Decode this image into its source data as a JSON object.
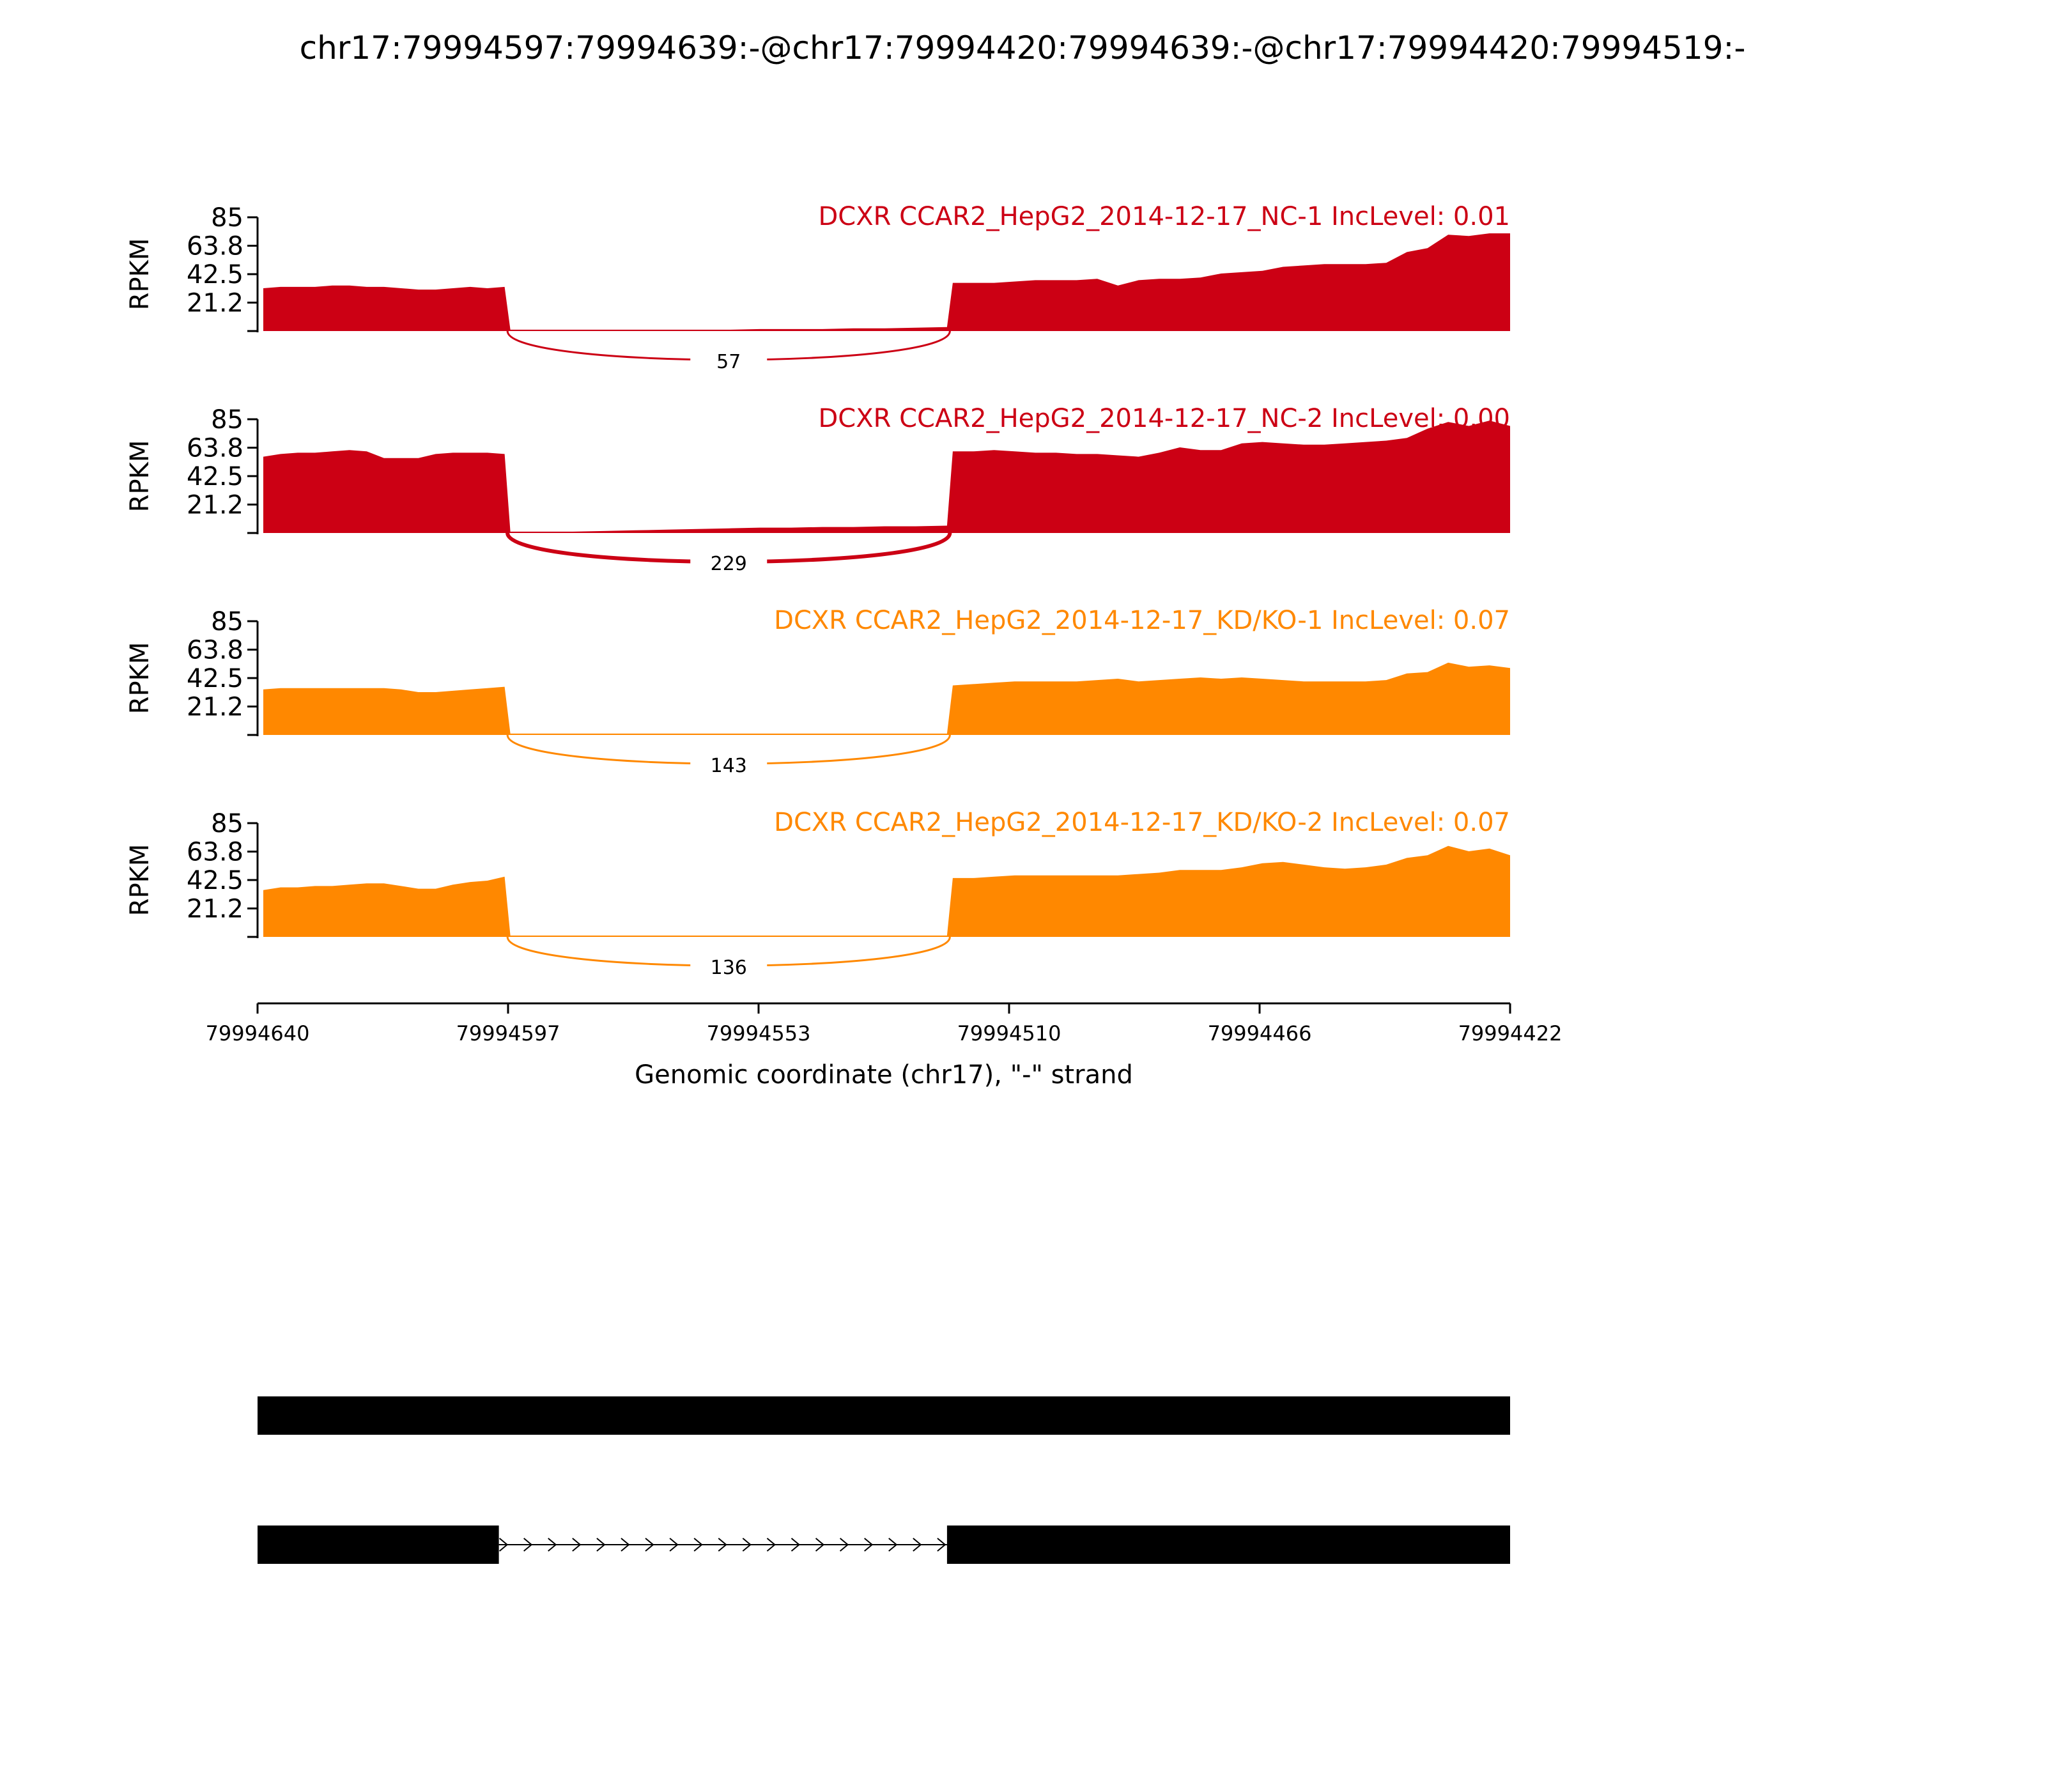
{
  "figure": {
    "title": "chr17:79994597:79994639:-@chr17:79994420:79994639:-@chr17:79994420:79994519:-",
    "ylabel": "RPKM",
    "xlabel": "Genomic coordinate (chr17), \"-\" strand",
    "x_ticks": [
      {
        "label": "79994640"
      },
      {
        "label": "79994597"
      },
      {
        "label": "79994553"
      },
      {
        "label": "79994510"
      },
      {
        "label": "79994466"
      },
      {
        "label": "79994422"
      }
    ]
  },
  "colors": {
    "nc": "#cc0014",
    "kd": "#ff8800",
    "axis": "#000000"
  },
  "chart_data": {
    "type": "area",
    "title": "chr17:79994597:79994639:-@chr17:79994420:79994639:-@chr17:79994420:79994519:-",
    "xlabel": "Genomic coordinate (chr17), \"-\" strand",
    "ylabel": "RPKM",
    "ylim": [
      0,
      85
    ],
    "y_ticks": [
      "21.2",
      "42.5",
      "63.8",
      "85"
    ],
    "x_tick_labels": [
      "79994640",
      "79994597",
      "79994553",
      "79994510",
      "79994466",
      "79994422"
    ],
    "xlim": [
      79994640,
      79994422
    ],
    "grid": false,
    "tracks": [
      {
        "label": "DCXR CCAR2_HepG2_2014-12-17_NC-1 IncLevel: 0.01",
        "color": "#cc0014",
        "junction_count": "57",
        "exon1": {
          "start": 79994639,
          "end": 79994597,
          "rpkm": [
            32,
            33,
            33,
            33,
            34,
            34,
            33,
            33,
            32,
            31,
            31,
            32,
            33,
            32,
            33
          ]
        },
        "intron": {
          "rpkm": [
            1,
            1,
            1,
            1,
            1,
            1,
            1,
            1,
            1.5,
            1.5,
            1.5,
            2,
            2,
            2.5,
            3
          ]
        },
        "exon2": {
          "start": 79994519,
          "end": 79994422,
          "rpkm": [
            36,
            36,
            36,
            37,
            38,
            38,
            38,
            39,
            34,
            38,
            39,
            39,
            40,
            43,
            44,
            45,
            48,
            49,
            50,
            50,
            50,
            51,
            59,
            62,
            72,
            71,
            73,
            73
          ]
        }
      },
      {
        "label": "DCXR CCAR2_HepG2_2014-12-17_NC-2 IncLevel: 0.00",
        "color": "#cc0014",
        "junction_count": "229",
        "exon1": {
          "start": 79994639,
          "end": 79994597,
          "rpkm": [
            57,
            59,
            60,
            60,
            61,
            62,
            61,
            56,
            56,
            56,
            59,
            60,
            60,
            60,
            59
          ]
        },
        "intron": {
          "rpkm": [
            1,
            1,
            1,
            1.5,
            2,
            2.5,
            3,
            3.5,
            4,
            4,
            4.5,
            4.5,
            5,
            5,
            5.5
          ]
        },
        "exon2": {
          "start": 79994519,
          "end": 79994422,
          "rpkm": [
            61,
            61,
            62,
            61,
            60,
            60,
            59,
            59,
            58,
            57,
            60,
            64,
            62,
            62,
            67,
            68,
            67,
            66,
            66,
            67,
            68,
            69,
            71,
            78,
            83,
            80,
            84,
            80
          ]
        }
      },
      {
        "label": "DCXR CCAR2_HepG2_2014-12-17_KD/KO-1 IncLevel: 0.07",
        "color": "#ff8800",
        "junction_count": "143",
        "exon1": {
          "start": 79994639,
          "end": 79994597,
          "rpkm": [
            34,
            35,
            35,
            35,
            35,
            35,
            35,
            35,
            34,
            32,
            32,
            33,
            34,
            35,
            36
          ]
        },
        "intron": {
          "rpkm": [
            1,
            1,
            1,
            1,
            1,
            1,
            1,
            1,
            1,
            1,
            1,
            1,
            1,
            1,
            1
          ]
        },
        "exon2": {
          "start": 79994519,
          "end": 79994422,
          "rpkm": [
            37,
            38,
            39,
            40,
            40,
            40,
            40,
            41,
            42,
            40,
            41,
            42,
            43,
            42,
            43,
            42,
            41,
            40,
            40,
            40,
            40,
            41,
            46,
            47,
            54,
            51,
            52,
            50
          ]
        }
      },
      {
        "label": "DCXR CCAR2_HepG2_2014-12-17_KD/KO-2 IncLevel: 0.07",
        "color": "#ff8800",
        "junction_count": "136",
        "exon1": {
          "start": 79994639,
          "end": 79994597,
          "rpkm": [
            35,
            37,
            37,
            38,
            38,
            39,
            40,
            40,
            38,
            36,
            36,
            39,
            41,
            42,
            45
          ]
        },
        "intron": {
          "rpkm": [
            1,
            1,
            1,
            1,
            1,
            1,
            1,
            1,
            1,
            1,
            1,
            1,
            1,
            1,
            1
          ]
        },
        "exon2": {
          "start": 79994519,
          "end": 79994422,
          "rpkm": [
            44,
            44,
            45,
            46,
            46,
            46,
            46,
            46,
            46,
            47,
            48,
            50,
            50,
            50,
            52,
            55,
            56,
            54,
            52,
            51,
            52,
            54,
            59,
            61,
            68,
            64,
            66,
            61
          ]
        }
      }
    ],
    "gene_models": [
      {
        "exons": [
          [
            79994640,
            79994422
          ]
        ]
      },
      {
        "exons": [
          [
            79994640,
            79994598
          ],
          [
            79994520,
            79994422
          ]
        ],
        "intron_arrows": true
      }
    ]
  }
}
